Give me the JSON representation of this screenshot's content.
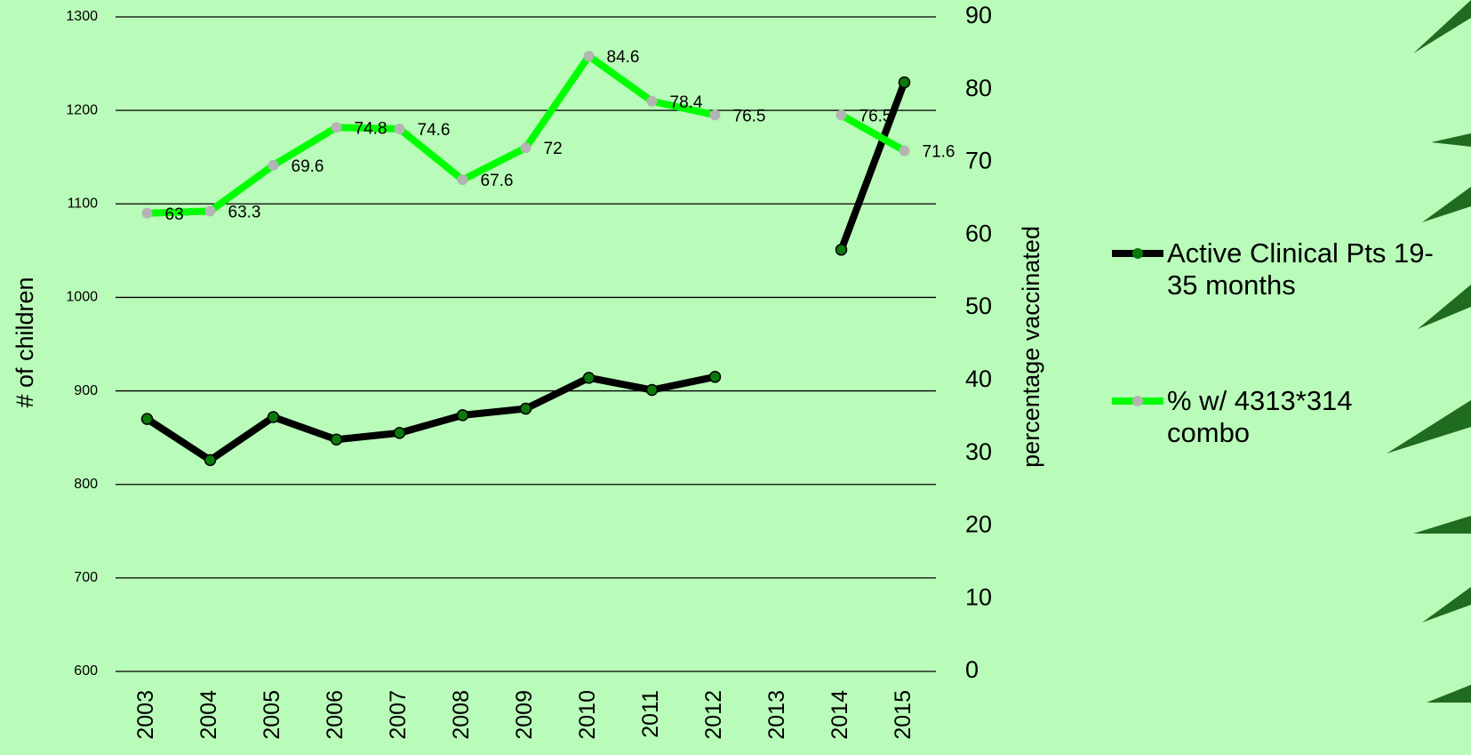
{
  "chart_data": {
    "type": "line",
    "categories": [
      "2003",
      "2004",
      "2005",
      "2006",
      "2007",
      "2008",
      "2009",
      "2010",
      "2011",
      "2012",
      "2013",
      "2014",
      "2015"
    ],
    "series": [
      {
        "name": "Active Clinical Pts 19-35 months",
        "color": "#000000",
        "marker_color": "#0a7a0a",
        "values": [
          870,
          826,
          872,
          848,
          855,
          874,
          881,
          914,
          901,
          915,
          null,
          1051,
          1230
        ]
      },
      {
        "name": "% w/ 4313*314 combo",
        "color": "#00ff00",
        "marker_color": "#b4b4b4",
        "axis": "y2",
        "values": [
          63,
          63.3,
          69.6,
          74.8,
          74.6,
          67.6,
          72,
          84.6,
          78.4,
          76.5,
          null,
          76.5,
          71.6
        ]
      }
    ],
    "ylabel": "# of children",
    "y2label": "percentage vaccinated",
    "ylim": [
      600,
      1300
    ],
    "yticks": [
      600,
      700,
      800,
      900,
      1000,
      1100,
      1200,
      1300
    ],
    "y2lim": [
      0,
      90
    ],
    "y2ticks": [
      0,
      10,
      20,
      30,
      40,
      50,
      60,
      70,
      80,
      90
    ],
    "grid": true,
    "legend": "right"
  }
}
